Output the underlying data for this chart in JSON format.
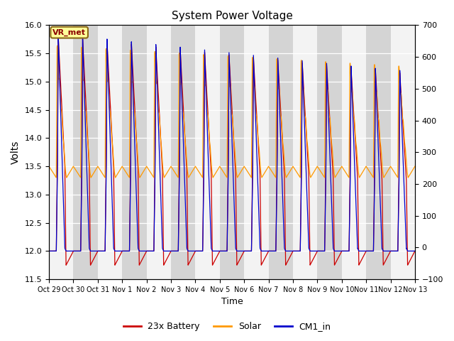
{
  "title": "System Power Voltage",
  "xlabel": "Time",
  "ylabel_left": "Volts",
  "ylim_left": [
    11.5,
    16.0
  ],
  "ylim_right": [
    -100,
    700
  ],
  "xtick_labels": [
    "Oct 29",
    "Oct 30",
    "Oct 31",
    "Nov 1",
    "Nov 2",
    "Nov 3",
    "Nov 4",
    "Nov 5",
    "Nov 6",
    "Nov 7",
    "Nov 8",
    "Nov 9",
    "Nov 10",
    "Nov 11",
    "Nov 12",
    "Nov 13"
  ],
  "yticks_left": [
    11.5,
    12.0,
    12.5,
    13.0,
    13.5,
    14.0,
    14.5,
    15.0,
    15.5,
    16.0
  ],
  "yticks_right": [
    -100,
    0,
    100,
    200,
    300,
    400,
    500,
    600,
    700
  ],
  "battery_color": "#cc0000",
  "solar_color": "#ff9900",
  "cm1_color": "#0000cc",
  "legend_labels": [
    "23x Battery",
    "Solar",
    "CM1_in"
  ],
  "annotation_text": "VR_met",
  "n_days": 15,
  "background_color": "#ffffff",
  "plot_bg_color": "#e8e8e8",
  "band_color": "#c8c8c8"
}
